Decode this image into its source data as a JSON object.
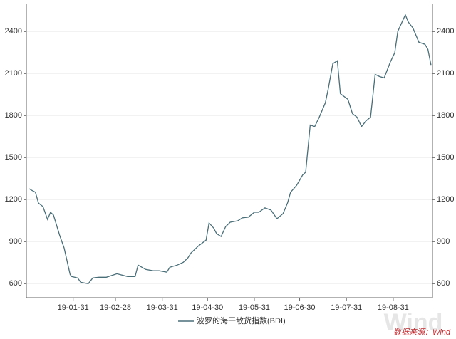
{
  "chart_data": {
    "type": "line",
    "x": [
      "19-01-02",
      "19-01-03",
      "19-01-06",
      "19-01-08",
      "19-01-11",
      "19-01-14",
      "19-01-16",
      "19-01-18",
      "19-01-22",
      "19-01-25",
      "19-01-29",
      "19-01-30",
      "19-02-03",
      "19-02-05",
      "19-02-10",
      "19-02-13",
      "19-02-17",
      "19-02-22",
      "19-03-01",
      "19-03-08",
      "19-03-13",
      "19-03-15",
      "19-03-20",
      "19-03-25",
      "19-03-29",
      "19-04-03",
      "19-04-05",
      "19-04-10",
      "19-04-14",
      "19-04-17",
      "19-04-19",
      "19-04-24",
      "19-04-29",
      "19-05-01",
      "19-05-04",
      "19-05-06",
      "19-05-09",
      "19-05-12",
      "19-05-15",
      "19-05-20",
      "19-05-23",
      "19-05-27",
      "19-05-31",
      "19-06-03",
      "19-06-07",
      "19-06-11",
      "19-06-15",
      "19-06-19",
      "19-06-22",
      "19-06-24",
      "19-06-28",
      "19-07-02",
      "19-07-04",
      "19-07-07",
      "19-07-10",
      "19-07-13",
      "19-07-17",
      "19-07-19",
      "19-07-22",
      "19-07-25",
      "19-07-27",
      "19-08-01",
      "19-08-04",
      "19-08-07",
      "19-08-10",
      "19-08-13",
      "19-08-16",
      "19-08-19",
      "19-08-22",
      "19-08-25",
      "19-08-29",
      "19-09-01",
      "19-09-03",
      "19-09-08",
      "19-09-10",
      "19-09-13",
      "19-09-17",
      "19-09-21",
      "19-09-23",
      "19-09-25"
    ],
    "series": [
      {
        "name": "波罗的海干散货指数(BDI)",
        "color": "#4a6e78",
        "values": [
          1278,
          1270,
          1253,
          1176,
          1151,
          1059,
          1110,
          1090,
          947,
          855,
          666,
          651,
          641,
          610,
          600,
          641,
          646,
          646,
          671,
          651,
          651,
          733,
          702,
          692,
          692,
          682,
          717,
          733,
          753,
          784,
          819,
          870,
          911,
          1034,
          998,
          957,
          937,
          1008,
          1039,
          1049,
          1070,
          1075,
          1110,
          1110,
          1141,
          1126,
          1064,
          1100,
          1177,
          1253,
          1302,
          1376,
          1396,
          1733,
          1722,
          1789,
          1891,
          1993,
          2171,
          2191,
          1957,
          1916,
          1814,
          1789,
          1722,
          1763,
          1789,
          2094,
          2079,
          2069,
          2181,
          2248,
          2401,
          2519,
          2468,
          2426,
          2324,
          2309,
          2273,
          2161
        ]
      }
    ],
    "xlim": [
      "18-12-31",
      "19-09-26"
    ],
    "xticks": [
      "19-01-31",
      "19-02-28",
      "19-03-31",
      "19-04-30",
      "19-05-31",
      "19-06-30",
      "19-07-31",
      "19-08-31"
    ],
    "ylim": [
      500,
      2600
    ],
    "yticks": [
      600,
      900,
      1200,
      1500,
      1800,
      2100,
      2400
    ],
    "grid": true,
    "legend": "bottom",
    "source": "数据来源：Wind",
    "watermark": "Wind"
  }
}
